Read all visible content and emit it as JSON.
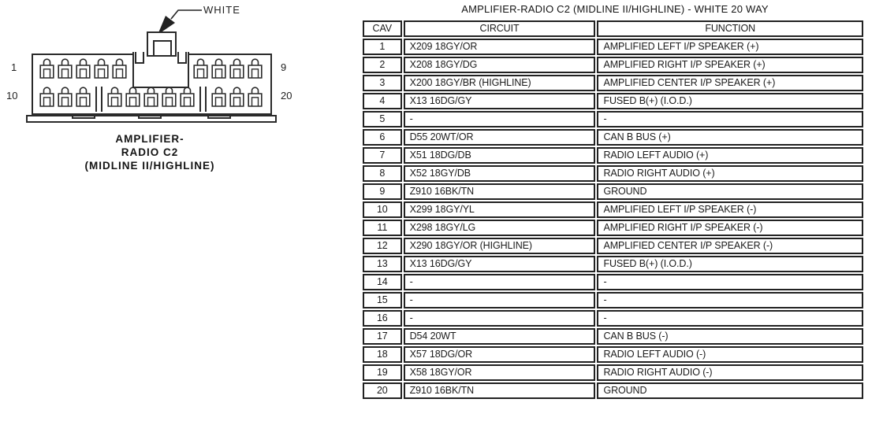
{
  "colors": {
    "ink": "#1b1b1b",
    "background": "#ffffff"
  },
  "diagram": {
    "connector_color_label": "WHITE",
    "caption_lines": [
      "AMPLIFIER-",
      "RADIO C2",
      "(MIDLINE II/HIGHLINE)"
    ],
    "pins": {
      "top_left": "1",
      "top_right": "9",
      "bottom_left": "10",
      "bottom_right": "20"
    },
    "terminal_layout": {
      "top_groups": [
        5,
        4
      ],
      "bottom_groups": [
        3,
        5,
        3
      ]
    }
  },
  "table": {
    "title": "AMPLIFIER-RADIO C2 (MIDLINE II/HIGHLINE) - WHITE 20 WAY",
    "headers": [
      "CAV",
      "CIRCUIT",
      "FUNCTION"
    ],
    "rows": [
      [
        "1",
        "X209 18GY/OR",
        "AMPLIFIED LEFT I/P SPEAKER (+)"
      ],
      [
        "2",
        "X208 18GY/DG",
        "AMPLIFIED RIGHT I/P SPEAKER (+)"
      ],
      [
        "3",
        "X200 18GY/BR (HIGHLINE)",
        "AMPLIFIED CENTER I/P SPEAKER (+)"
      ],
      [
        "4",
        "X13 16DG/GY",
        "FUSED B(+) (I.O.D.)"
      ],
      [
        "5",
        "-",
        "-"
      ],
      [
        "6",
        "D55 20WT/OR",
        "CAN B BUS (+)"
      ],
      [
        "7",
        "X51 18DG/DB",
        "RADIO LEFT AUDIO (+)"
      ],
      [
        "8",
        "X52 18GY/DB",
        "RADIO RIGHT AUDIO (+)"
      ],
      [
        "9",
        "Z910 16BK/TN",
        "GROUND"
      ],
      [
        "10",
        "X299 18GY/YL",
        "AMPLIFIED LEFT I/P SPEAKER (-)"
      ],
      [
        "11",
        "X298 18GY/LG",
        "AMPLIFIED RIGHT I/P SPEAKER (-)"
      ],
      [
        "12",
        "X290 18GY/OR (HIGHLINE)",
        "AMPLIFIED CENTER I/P SPEAKER (-)"
      ],
      [
        "13",
        "X13 16DG/GY",
        "FUSED B(+) (I.O.D.)"
      ],
      [
        "14",
        "-",
        "-"
      ],
      [
        "15",
        "-",
        "-"
      ],
      [
        "16",
        "-",
        "-"
      ],
      [
        "17",
        "D54 20WT",
        "CAN B BUS (-)"
      ],
      [
        "18",
        "X57 18DG/OR",
        "RADIO LEFT AUDIO (-)"
      ],
      [
        "19",
        "X58 18GY/OR",
        "RADIO RIGHT AUDIO (-)"
      ],
      [
        "20",
        "Z910 16BK/TN",
        "GROUND"
      ]
    ]
  }
}
